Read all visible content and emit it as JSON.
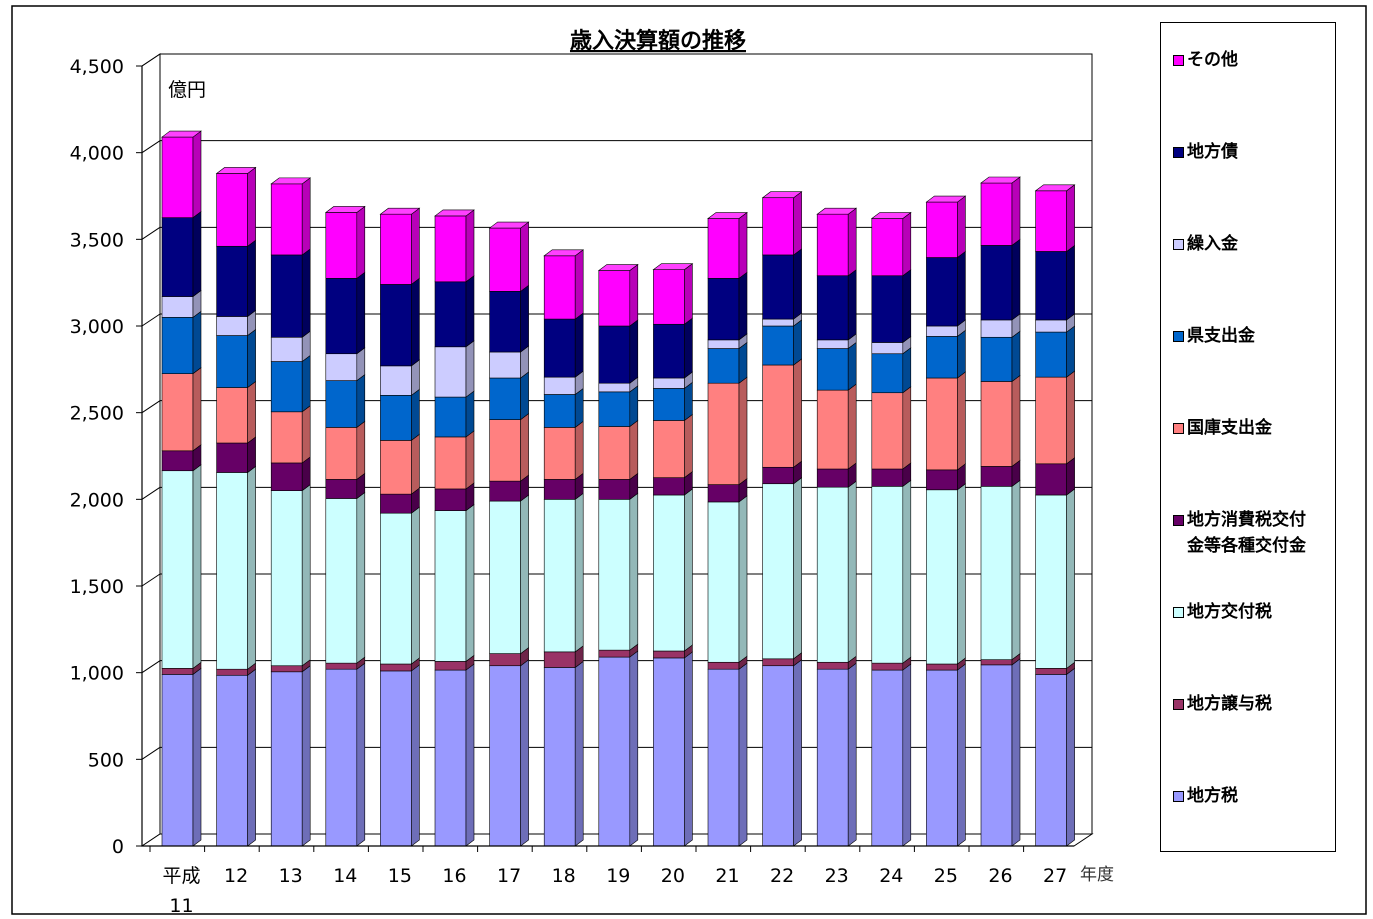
{
  "chart_data": {
    "type": "bar",
    "stacked": true,
    "title": "歳入決算額の推移",
    "unit_label": "億円",
    "xlabel": "年度",
    "ylim": [
      0,
      4500
    ],
    "yticks": [
      0,
      500,
      1000,
      1500,
      2000,
      2500,
      3000,
      3500,
      4000,
      4500
    ],
    "ytick_labels": [
      "0",
      "500",
      "1,000",
      "1,500",
      "2,000",
      "2,500",
      "3,000",
      "3,500",
      "4,000",
      "4,500"
    ],
    "categories": [
      "平成11",
      "12",
      "13",
      "14",
      "15",
      "16",
      "17",
      "18",
      "19",
      "20",
      "21",
      "22",
      "23",
      "24",
      "25",
      "26",
      "27"
    ],
    "category_labels": [
      [
        "平成",
        "11"
      ],
      [
        "12"
      ],
      [
        "13"
      ],
      [
        "14"
      ],
      [
        "15"
      ],
      [
        "16"
      ],
      [
        "17"
      ],
      [
        "18"
      ],
      [
        "19"
      ],
      [
        "20"
      ],
      [
        "21"
      ],
      [
        "22"
      ],
      [
        "23"
      ],
      [
        "24"
      ],
      [
        "25"
      ],
      [
        "26"
      ],
      [
        "27"
      ]
    ],
    "legend_position": "right",
    "series": [
      {
        "name": "地方税",
        "legend_lines": [
          "地方税"
        ],
        "color": "#9999FF",
        "values": [
          990,
          985,
          1005,
          1020,
          1010,
          1015,
          1040,
          1030,
          1090,
          1085,
          1020,
          1040,
          1020,
          1015,
          1015,
          1045,
          990
        ]
      },
      {
        "name": "地方譲与税",
        "legend_lines": [
          "地方譲与税"
        ],
        "color": "#993366",
        "values": [
          35,
          35,
          35,
          35,
          40,
          50,
          70,
          90,
          40,
          40,
          40,
          40,
          40,
          40,
          35,
          30,
          35
        ]
      },
      {
        "name": "地方交付税",
        "legend_lines": [
          "地方交付税"
        ],
        "color": "#CCFFFF",
        "values": [
          1140,
          1135,
          1010,
          950,
          870,
          870,
          880,
          880,
          870,
          900,
          925,
          1010,
          1010,
          1020,
          1005,
          1000,
          1000
        ]
      },
      {
        "name": "地方消費税交付金等各種交付金",
        "legend_lines": [
          "地方消費税交付",
          "金等各種交付金"
        ],
        "color": "#660066",
        "values": [
          115,
          170,
          160,
          110,
          110,
          125,
          115,
          115,
          115,
          100,
          100,
          95,
          105,
          100,
          115,
          115,
          180
        ]
      },
      {
        "name": "国庫支出金",
        "legend_lines": [
          "国庫支出金"
        ],
        "color": "#FF8080",
        "values": [
          445,
          320,
          295,
          300,
          310,
          300,
          355,
          300,
          305,
          330,
          585,
          590,
          455,
          440,
          530,
          490,
          500
        ]
      },
      {
        "name": "県支出金",
        "legend_lines": [
          "県支出金"
        ],
        "color": "#0066CC",
        "values": [
          325,
          300,
          290,
          270,
          260,
          230,
          240,
          190,
          200,
          185,
          200,
          225,
          240,
          225,
          240,
          255,
          260
        ]
      },
      {
        "name": "繰入金",
        "legend_lines": [
          "繰入金"
        ],
        "color": "#CCCCFF",
        "values": [
          120,
          110,
          140,
          155,
          170,
          290,
          150,
          100,
          50,
          60,
          50,
          40,
          50,
          65,
          60,
          100,
          70
        ]
      },
      {
        "name": "地方債",
        "legend_lines": [
          "地方債"
        ],
        "color": "#000080",
        "values": [
          455,
          405,
          475,
          435,
          470,
          375,
          350,
          335,
          330,
          310,
          355,
          370,
          370,
          385,
          395,
          430,
          395
        ]
      },
      {
        "name": "その他",
        "legend_lines": [
          "その他"
        ],
        "color": "#FF00FF",
        "values": [
          465,
          420,
          410,
          380,
          405,
          380,
          365,
          365,
          320,
          315,
          345,
          330,
          355,
          330,
          320,
          360,
          350
        ]
      }
    ]
  }
}
